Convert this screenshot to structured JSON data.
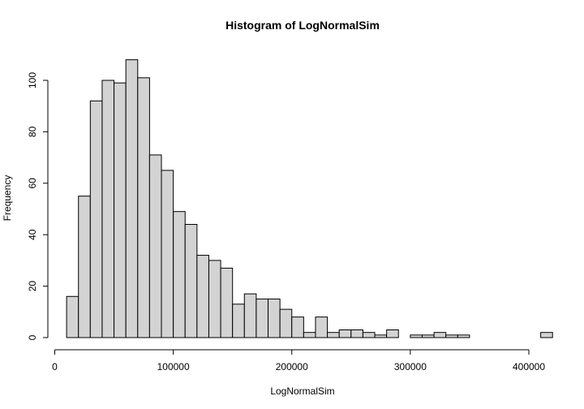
{
  "chart_data": {
    "type": "bar",
    "title": "Histogram of LogNormalSim",
    "xlabel": "LogNormalSim",
    "ylabel": "Frequency",
    "bin_width": 10000,
    "bin_start": 10000,
    "values": [
      16,
      55,
      92,
      100,
      99,
      108,
      101,
      71,
      65,
      49,
      44,
      32,
      30,
      27,
      13,
      17,
      15,
      15,
      11,
      8,
      2,
      8,
      2,
      3,
      3,
      2,
      1,
      3,
      0,
      1,
      1,
      2,
      1,
      1,
      0,
      0,
      0,
      0,
      0,
      0,
      2
    ],
    "xlim": [
      0,
      410000
    ],
    "ylim": [
      0,
      108
    ],
    "xticks": [
      0,
      100000,
      200000,
      300000,
      400000
    ],
    "xtick_labels": [
      "0",
      "100000",
      "200000",
      "300000",
      "400000"
    ],
    "yticks": [
      0,
      20,
      40,
      60,
      80,
      100
    ],
    "ytick_labels": [
      "0",
      "20",
      "40",
      "60",
      "80",
      "100"
    ],
    "grid": false,
    "colors": {
      "bar_fill": "#d3d3d3",
      "bar_stroke": "#000000"
    }
  }
}
